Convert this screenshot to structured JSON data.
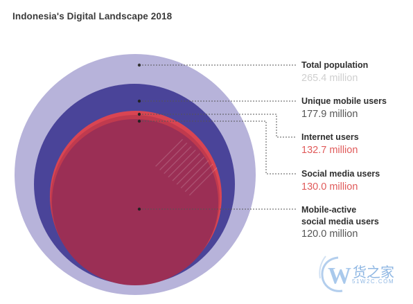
{
  "title": "Indonesia's Digital Landscape 2018",
  "items": [
    {
      "name": "Total population",
      "value": "265.4 million",
      "value_color": "#cfcfcf"
    },
    {
      "name": "Unique mobile users",
      "value": "177.9 million",
      "value_color": "#555555"
    },
    {
      "name": "Internet users",
      "value": "132.7 million",
      "value_color": "#e05a5a"
    },
    {
      "name": "Social media users",
      "value": "130.0 million",
      "value_color": "#e05a5a"
    },
    {
      "name_line1": "Mobile-active",
      "name_line2": "social media users",
      "value": "120.0 million",
      "value_color": "#555555"
    }
  ],
  "colors": {
    "total_population": "#b7b3da",
    "unique_mobile": "#4a4499",
    "internet": "#d94552",
    "social_media": "#c03a4e",
    "mobile_social": "#9b2f55"
  },
  "watermark": {
    "brand": "货之家",
    "domain": "51W2C.COM"
  }
}
